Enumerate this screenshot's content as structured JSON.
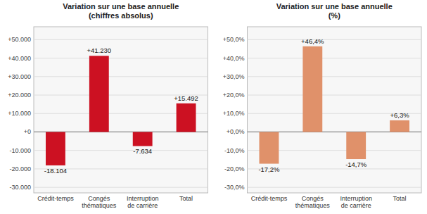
{
  "chart_data": [
    {
      "type": "bar",
      "title": "Variation sur une base annuelle\n(chiffres absolus)",
      "categories": [
        "Crédit-temps",
        "Congés\nthématiques",
        "Interruption\nde carrière",
        "Total"
      ],
      "values": [
        -18104,
        41230,
        -7634,
        15492
      ],
      "value_labels": [
        "-18.104",
        "+41.230",
        "-7.634",
        "+15.492"
      ],
      "color": "#cc1122",
      "ylim": [
        -33000,
        57000
      ],
      "yticks": [
        {
          "value": -30000,
          "label": "-30.000"
        },
        {
          "value": -20000,
          "label": "-20.000"
        },
        {
          "value": -10000,
          "label": "-10.000"
        },
        {
          "value": 0,
          "label": "+0"
        },
        {
          "value": 10000,
          "label": "+10.000"
        },
        {
          "value": 20000,
          "label": "+20.000"
        },
        {
          "value": 30000,
          "label": "+30.000"
        },
        {
          "value": 40000,
          "label": "+40.000"
        },
        {
          "value": 50000,
          "label": "+50.000"
        }
      ],
      "grid": true,
      "data_labels": true
    },
    {
      "type": "bar",
      "title": "Variation sur une base annuelle\n(%)",
      "categories": [
        "Crédit-temps",
        "Congés\nthématiques",
        "Interruption\nde carrière",
        "Total"
      ],
      "values": [
        -17.2,
        46.4,
        -14.7,
        6.3
      ],
      "value_labels": [
        "-17,2%",
        "+46,4%",
        "-14,7%",
        "+6,3%"
      ],
      "color": "#e0916a",
      "ylim": [
        -33,
        57
      ],
      "yticks": [
        {
          "value": -30,
          "label": "-30,0%"
        },
        {
          "value": -20,
          "label": "-20,0%"
        },
        {
          "value": -10,
          "label": "-10,0%"
        },
        {
          "value": 0,
          "label": "+0,0%"
        },
        {
          "value": 10,
          "label": "+10,0%"
        },
        {
          "value": 20,
          "label": "+20,0%"
        },
        {
          "value": 30,
          "label": "+30,0%"
        },
        {
          "value": 40,
          "label": "+40,0%"
        },
        {
          "value": 50,
          "label": "+50,0%"
        }
      ],
      "grid": true,
      "data_labels": true
    }
  ]
}
